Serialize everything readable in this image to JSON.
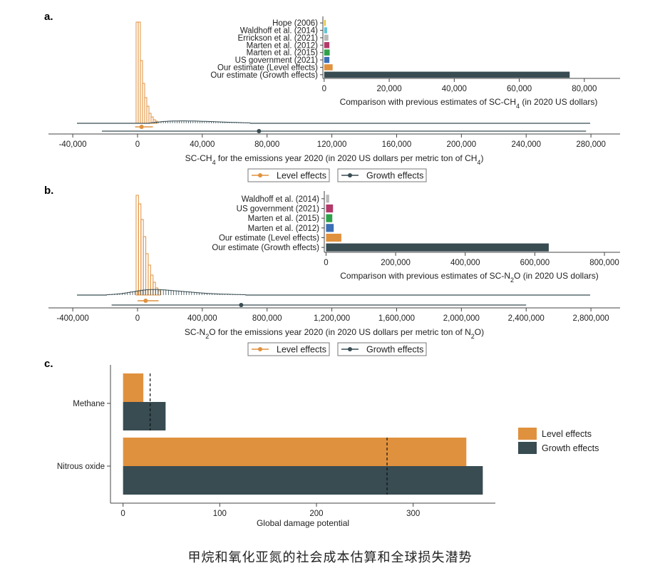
{
  "caption": "甲烷和氧化亚氮的社会成本估算和全球损失潜势",
  "colors": {
    "level": "#e0913e",
    "growth": "#384c52",
    "hope": "#e8c43a",
    "waldhoff": "#5fc4d8",
    "errickson": "#b9b9b9",
    "marten2012": "#b33a6b",
    "marten2015": "#2ea24a",
    "usgov": "#3b6fb6"
  },
  "legend": {
    "level": "Level effects",
    "growth": "Growth effects"
  },
  "chart_data": [
    {
      "panel": "a.",
      "type": "histogram",
      "xlabel_pre": "SC-CH",
      "xlabel_sub": "4",
      "xlabel_post": " for the emissions year 2020 (in 2020 US dollars per metric ton of CH",
      "xlabel_sub2": "4",
      "xlabel_end": ")",
      "xticks": [
        -40000,
        0,
        40000,
        80000,
        120000,
        160000,
        200000,
        240000,
        280000
      ],
      "xtick_labels": [
        "-40,000",
        "0",
        "40,000",
        "80,000",
        "120,000",
        "160,000",
        "200,000",
        "240,000",
        "280,000"
      ],
      "xlim": [
        -55000,
        298000
      ],
      "level": {
        "median": 2500,
        "interval": [
          -1500,
          9500
        ]
      },
      "growth": {
        "median": 75000,
        "interval": [
          -22000,
          277000
        ]
      },
      "inset": {
        "type": "bar",
        "orientation": "horizontal",
        "xlabel_pre": "Comparison with previous estimates of SC-CH",
        "xlabel_sub": "4",
        "xlabel_post": " (in 2020 US dollars)",
        "xticks": [
          0,
          20000,
          40000,
          60000,
          80000
        ],
        "xtick_labels": [
          "0",
          "20,000",
          "40,000",
          "60,000",
          "80,000"
        ],
        "xlim": [
          -400,
          91000
        ],
        "categories": [
          "Hope (2006)",
          "Waldhoff et al. (2014)",
          "Errickson et al. (2021)",
          "Marten et al. (2012)",
          "Marten et al. (2015)",
          "US government (2021)",
          "Our estimate (Level effects)",
          "Our estimate (Growth effects)"
        ],
        "values": [
          500,
          900,
          1300,
          1600,
          1700,
          1600,
          2600,
          75500
        ],
        "color_keys": [
          "hope",
          "waldhoff",
          "errickson",
          "marten2012",
          "marten2015",
          "usgov",
          "level",
          "growth"
        ]
      }
    },
    {
      "panel": "b.",
      "type": "histogram",
      "xlabel_pre": "SC-N",
      "xlabel_sub": "2",
      "xlabel_post": "O for the emissions year 2020 (in 2020 US dollars per metric ton of N",
      "xlabel_sub2": "2",
      "xlabel_end": "O)",
      "xticks": [
        -400000,
        0,
        400000,
        800000,
        1200000,
        1600000,
        2000000,
        2400000,
        2800000
      ],
      "xtick_labels": [
        "-400,000",
        "0",
        "400,000",
        "800,000",
        "1,200,000",
        "1,600,000",
        "2,000,000",
        "2,400,000",
        "2,800,000"
      ],
      "xlim": [
        -550000,
        2980000
      ],
      "level": {
        "median": 50000,
        "interval": [
          0,
          130000
        ]
      },
      "growth": {
        "median": 640000,
        "interval": [
          -160000,
          2400000
        ]
      },
      "inset": {
        "type": "bar",
        "orientation": "horizontal",
        "xlabel_pre": "Comparison with previous estimates of SC-N",
        "xlabel_sub": "2",
        "xlabel_post": "O (in 2020 US dollars)",
        "xticks": [
          0,
          200000,
          400000,
          600000,
          800000
        ],
        "xtick_labels": [
          "0",
          "200,000",
          "400,000",
          "600,000",
          "800,000"
        ],
        "xlim": [
          -5000,
          845000
        ],
        "categories": [
          "Waldhoff et al. (2014)",
          "US government (2021)",
          "Marten et al. (2015)",
          "Marten et al. (2012)",
          "Our estimate (Level effects)",
          "Our estimate (Growth effects)"
        ],
        "values": [
          9000,
          20000,
          18000,
          22000,
          44000,
          640000
        ],
        "color_keys": [
          "errickson",
          "marten2012",
          "marten2015",
          "usgov",
          "level",
          "growth"
        ]
      }
    },
    {
      "panel": "c.",
      "type": "bar",
      "orientation": "horizontal",
      "xlabel": "Global damage potential",
      "xticks": [
        0,
        100,
        200,
        300
      ],
      "xlim": [
        -13,
        385
      ],
      "categories": [
        "Methane",
        "Nitrous oxide"
      ],
      "series": [
        {
          "name": "Level effects",
          "values": [
            21,
            355
          ]
        },
        {
          "name": "Growth effects",
          "values": [
            44,
            372
          ]
        }
      ],
      "reference_lines": [
        28,
        273
      ]
    }
  ]
}
